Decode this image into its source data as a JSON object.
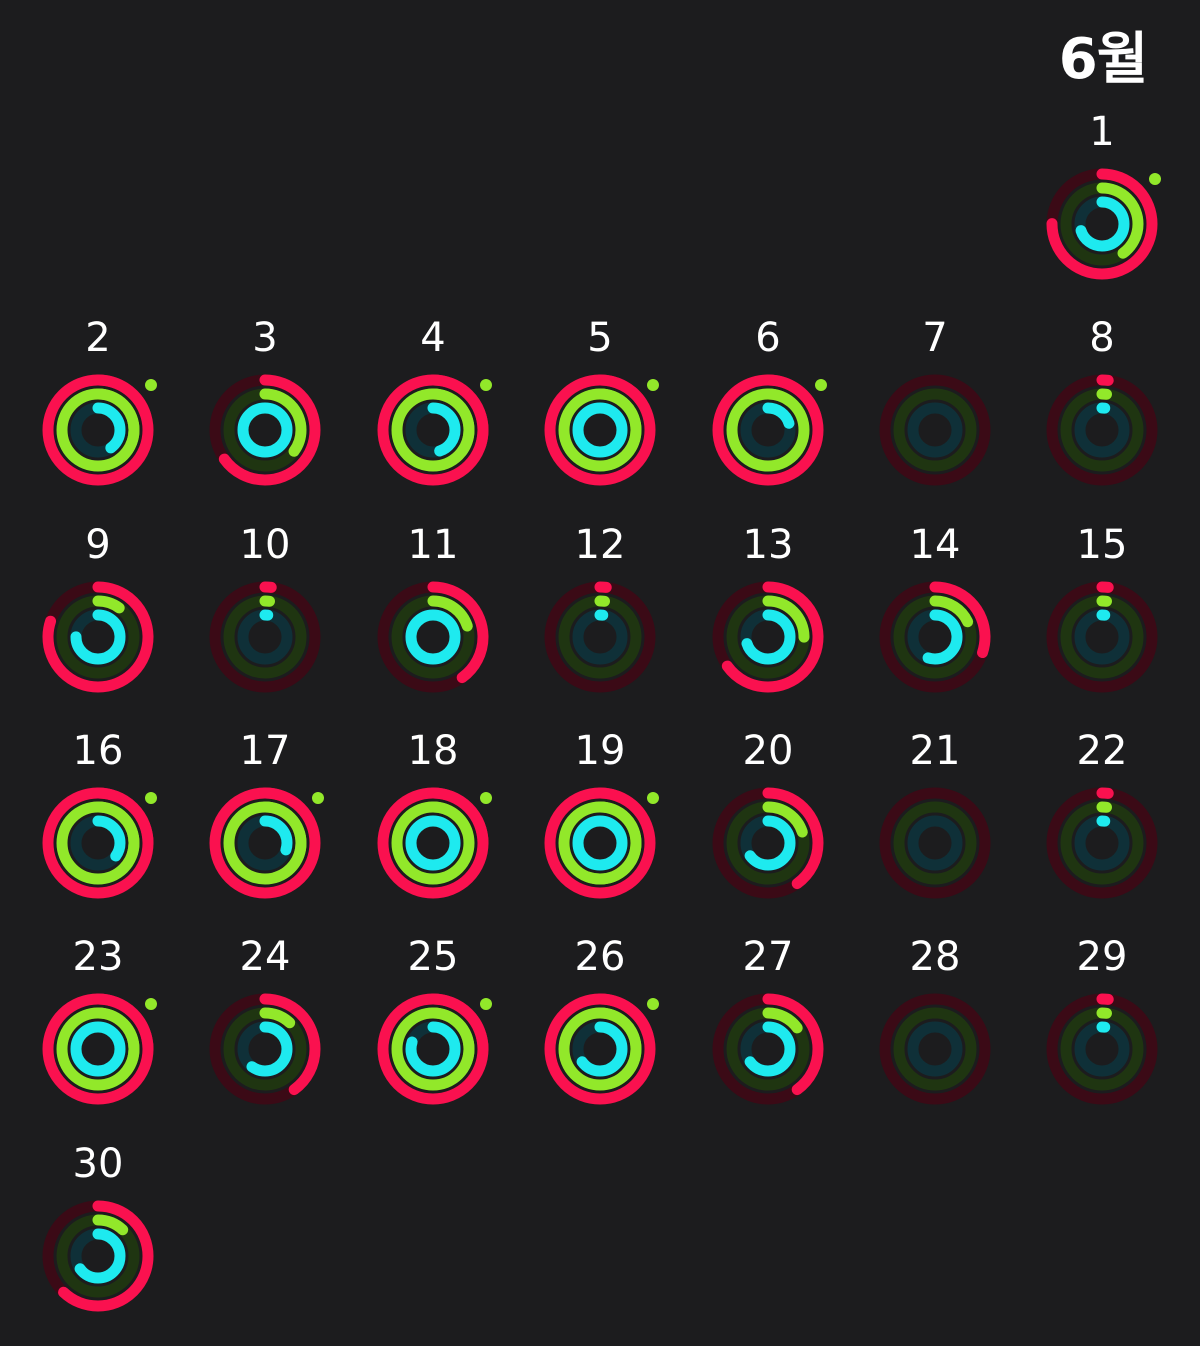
{
  "header": {
    "month": "6월"
  },
  "colors": {
    "background": "#1c1c1e",
    "move": "#fa114f",
    "move_track": "#3b0a16",
    "exercise": "#92e82a",
    "exercise_track": "#1f3511",
    "stand": "#1eeaef",
    "stand_track": "#0f3038"
  },
  "days": [
    {
      "label": "1",
      "move": 0.75,
      "exercise": 0.4,
      "stand": 0.7,
      "completed": true
    },
    {
      "label": "2",
      "move": 1.2,
      "exercise": 1.4,
      "stand": 0.4,
      "completed": true
    },
    {
      "label": "3",
      "move": 0.65,
      "exercise": 0.35,
      "stand": 1.0,
      "completed": false
    },
    {
      "label": "4",
      "move": 1.3,
      "exercise": 1.35,
      "stand": 0.45,
      "completed": true
    },
    {
      "label": "5",
      "move": 1.15,
      "exercise": 1.45,
      "stand": 1.0,
      "completed": true
    },
    {
      "label": "6",
      "move": 1.2,
      "exercise": 1.1,
      "stand": 0.2,
      "completed": true
    },
    {
      "label": "7",
      "move": 0.0,
      "exercise": 0.0,
      "stand": 0.0,
      "completed": false
    },
    {
      "label": "8",
      "move": 0.02,
      "exercise": 0.02,
      "stand": 0.02,
      "completed": false
    },
    {
      "label": "9",
      "move": 0.8,
      "exercise": 0.1,
      "stand": 0.75,
      "completed": false
    },
    {
      "label": "10",
      "move": 0.02,
      "exercise": 0.02,
      "stand": 0.02,
      "completed": false
    },
    {
      "label": "11",
      "move": 0.4,
      "exercise": 0.2,
      "stand": 1.0,
      "completed": false
    },
    {
      "label": "12",
      "move": 0.02,
      "exercise": 0.02,
      "stand": 0.02,
      "completed": false
    },
    {
      "label": "13",
      "move": 0.65,
      "exercise": 0.25,
      "stand": 0.7,
      "completed": false
    },
    {
      "label": "14",
      "move": 0.3,
      "exercise": 0.18,
      "stand": 0.55,
      "completed": false
    },
    {
      "label": "15",
      "move": 0.02,
      "exercise": 0.02,
      "stand": 0.02,
      "completed": false
    },
    {
      "label": "16",
      "move": 1.25,
      "exercise": 1.3,
      "stand": 0.35,
      "completed": true
    },
    {
      "label": "17",
      "move": 1.1,
      "exercise": 1.45,
      "stand": 0.3,
      "completed": true
    },
    {
      "label": "18",
      "move": 1.25,
      "exercise": 1.2,
      "stand": 1.0,
      "completed": true
    },
    {
      "label": "19",
      "move": 1.15,
      "exercise": 1.55,
      "stand": 1.0,
      "completed": true
    },
    {
      "label": "20",
      "move": 0.4,
      "exercise": 0.2,
      "stand": 0.65,
      "completed": false
    },
    {
      "label": "21",
      "move": 0.0,
      "exercise": 0.0,
      "stand": 0.0,
      "completed": false
    },
    {
      "label": "22",
      "move": 0.02,
      "exercise": 0.02,
      "stand": 0.02,
      "completed": false
    },
    {
      "label": "23",
      "move": 1.25,
      "exercise": 1.35,
      "stand": 1.0,
      "completed": true
    },
    {
      "label": "24",
      "move": 0.4,
      "exercise": 0.12,
      "stand": 0.6,
      "completed": false
    },
    {
      "label": "25",
      "move": 1.25,
      "exercise": 1.4,
      "stand": 0.8,
      "completed": true
    },
    {
      "label": "26",
      "move": 1.2,
      "exercise": 1.45,
      "stand": 0.65,
      "completed": true
    },
    {
      "label": "27",
      "move": 0.4,
      "exercise": 0.15,
      "stand": 0.65,
      "completed": false
    },
    {
      "label": "28",
      "move": 0.0,
      "exercise": 0.0,
      "stand": 0.0,
      "completed": false
    },
    {
      "label": "29",
      "move": 0.02,
      "exercise": 0.02,
      "stand": 0.02,
      "completed": false
    },
    {
      "label": "30",
      "move": 0.62,
      "exercise": 0.12,
      "stand": 0.65,
      "completed": false
    }
  ]
}
